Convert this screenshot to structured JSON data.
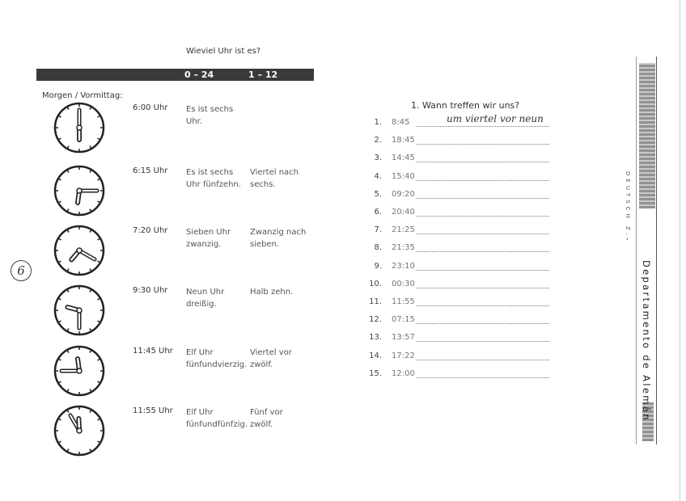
{
  "left_page": {
    "title": "Wieviel Uhr ist es?",
    "header_bar": {
      "col1": "0 – 24",
      "col2": "1 – 12"
    },
    "section_label": "Morgen / Vormittag:",
    "rows": [
      {
        "time": "6:00 Uhr",
        "hour": 6,
        "minute": 0,
        "text_24": "Es ist sechs Uhr.",
        "text_12": ""
      },
      {
        "time": "6:15 Uhr",
        "hour": 6,
        "minute": 15,
        "text_24": "Es ist sechs Uhr fünfzehn.",
        "text_12": "Viertel nach sechs."
      },
      {
        "time": "7:20 Uhr",
        "hour": 7,
        "minute": 20,
        "text_24": "Sieben Uhr zwanzig.",
        "text_12": "Zwanzig nach sieben."
      },
      {
        "time": "9:30 Uhr",
        "hour": 9,
        "minute": 30,
        "text_24": "Neun Uhr dreißig.",
        "text_12": "Halb zehn."
      },
      {
        "time": "11:45 Uhr",
        "hour": 11,
        "minute": 45,
        "text_24": "Elf Uhr fünfundvierzig.",
        "text_12": "Viertel vor zwölf."
      },
      {
        "time": "11:55 Uhr",
        "hour": 11,
        "minute": 55,
        "text_24": "Elf Uhr fünfundfünfzig.",
        "text_12": "Fünf vor zwölf."
      }
    ],
    "margin_note": "6"
  },
  "exercise": {
    "title": "1. Wann treffen wir uns?",
    "items": [
      {
        "n": "1.",
        "time": "8:45",
        "answer": "um viertel vor neun"
      },
      {
        "n": "2.",
        "time": "18:45",
        "answer": ""
      },
      {
        "n": "3.",
        "time": "14:45",
        "answer": ""
      },
      {
        "n": "4.",
        "time": "15:40",
        "answer": ""
      },
      {
        "n": "5.",
        "time": "09:20",
        "answer": ""
      },
      {
        "n": "6.",
        "time": "20:40",
        "answer": ""
      },
      {
        "n": "7.",
        "time": "21:25",
        "answer": ""
      },
      {
        "n": "8.",
        "time": "21:35",
        "answer": ""
      },
      {
        "n": "9.",
        "time": "23:10",
        "answer": ""
      },
      {
        "n": "10.",
        "time": "00:30",
        "answer": ""
      },
      {
        "n": "11.",
        "time": "11:55",
        "answer": ""
      },
      {
        "n": "12.",
        "time": "07:15",
        "answer": ""
      },
      {
        "n": "13.",
        "time": "13:57",
        "answer": ""
      },
      {
        "n": "14.",
        "time": "17:22",
        "answer": ""
      },
      {
        "n": "15.",
        "time": "12:00",
        "answer": ""
      }
    ]
  },
  "sidebar": {
    "course": "DEUTSCH Z.",
    "dash": "-",
    "department": "Departamento de Alemán"
  }
}
